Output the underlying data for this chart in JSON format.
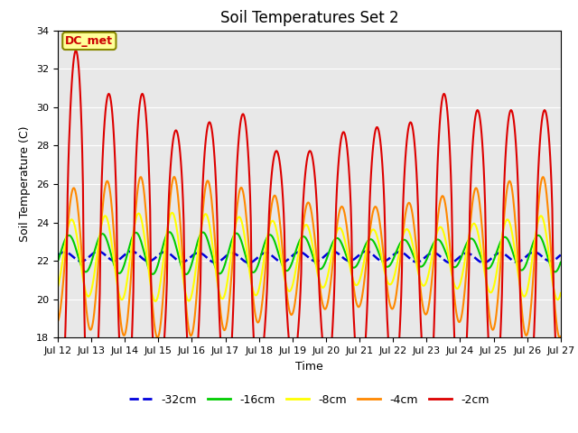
{
  "title": "Soil Temperatures Set 2",
  "xlabel": "Time",
  "ylabel": "Soil Temperature (C)",
  "ylim": [
    18,
    34
  ],
  "x_tick_labels": [
    "Jul 12",
    "Jul 13",
    "Jul 14",
    "Jul 15",
    "Jul 16",
    "Jul 17",
    "Jul 18",
    "Jul 19",
    "Jul 20",
    "Jul 21",
    "Jul 22",
    "Jul 23",
    "Jul 24",
    "Jul 25",
    "Jul 26",
    "Jul 27"
  ],
  "colors": {
    "-32cm": "#0000dd",
    "-16cm": "#00cc00",
    "-8cm": "#ffff00",
    "-4cm": "#ff8800",
    "-2cm": "#dd0000"
  },
  "annotation": "DC_met",
  "annotation_color": "#cc0000",
  "annotation_bg": "#ffff99",
  "annotation_edge": "#888800",
  "background_color": "#e8e8e8",
  "title_fontsize": 12,
  "label_fontsize": 9,
  "tick_fontsize": 8,
  "grid_color": "#ffffff"
}
